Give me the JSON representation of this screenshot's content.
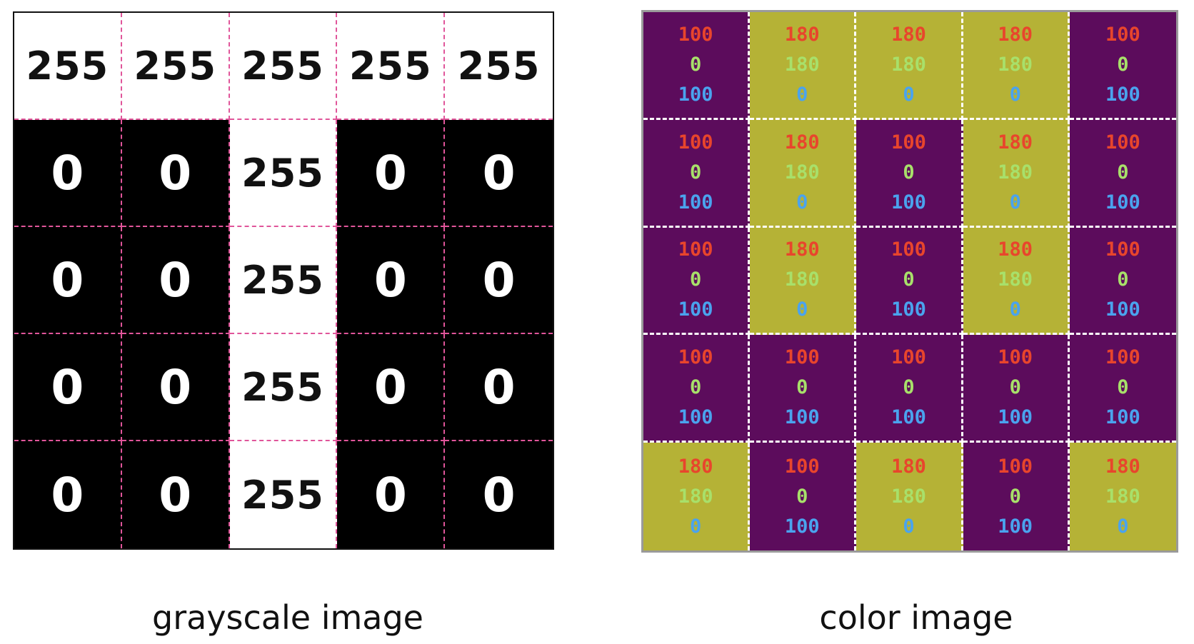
{
  "grayscale": {
    "caption": "grayscale image",
    "rows": [
      [
        255,
        255,
        255,
        255,
        255
      ],
      [
        0,
        0,
        255,
        0,
        0
      ],
      [
        0,
        0,
        255,
        0,
        0
      ],
      [
        0,
        0,
        255,
        0,
        0
      ],
      [
        0,
        0,
        255,
        0,
        0
      ]
    ],
    "colors": {
      "white_cell": "#ffffff",
      "black_cell": "#000000",
      "grid_line": "#e0559a"
    }
  },
  "color": {
    "caption": "color image",
    "rows": [
      [
        [
          100,
          0,
          100
        ],
        [
          180,
          180,
          0
        ],
        [
          180,
          180,
          0
        ],
        [
          180,
          180,
          0
        ],
        [
          100,
          0,
          100
        ]
      ],
      [
        [
          100,
          0,
          100
        ],
        [
          180,
          180,
          0
        ],
        [
          100,
          0,
          100
        ],
        [
          180,
          180,
          0
        ],
        [
          100,
          0,
          100
        ]
      ],
      [
        [
          100,
          0,
          100
        ],
        [
          180,
          180,
          0
        ],
        [
          100,
          0,
          100
        ],
        [
          180,
          180,
          0
        ],
        [
          100,
          0,
          100
        ]
      ],
      [
        [
          100,
          0,
          100
        ],
        [
          100,
          0,
          100
        ],
        [
          100,
          0,
          100
        ],
        [
          100,
          0,
          100
        ],
        [
          100,
          0,
          100
        ]
      ],
      [
        [
          180,
          180,
          0
        ],
        [
          100,
          0,
          100
        ],
        [
          180,
          180,
          0
        ],
        [
          100,
          0,
          100
        ],
        [
          180,
          180,
          0
        ]
      ]
    ],
    "colors": {
      "purple_cell": "#5c0c5c",
      "olive_cell": "#b5b236",
      "grid_line": "#ffffff",
      "red_channel_text": "#e8452c",
      "green_channel_text": "#a8e06a",
      "blue_channel_text": "#4aa3ee"
    }
  }
}
